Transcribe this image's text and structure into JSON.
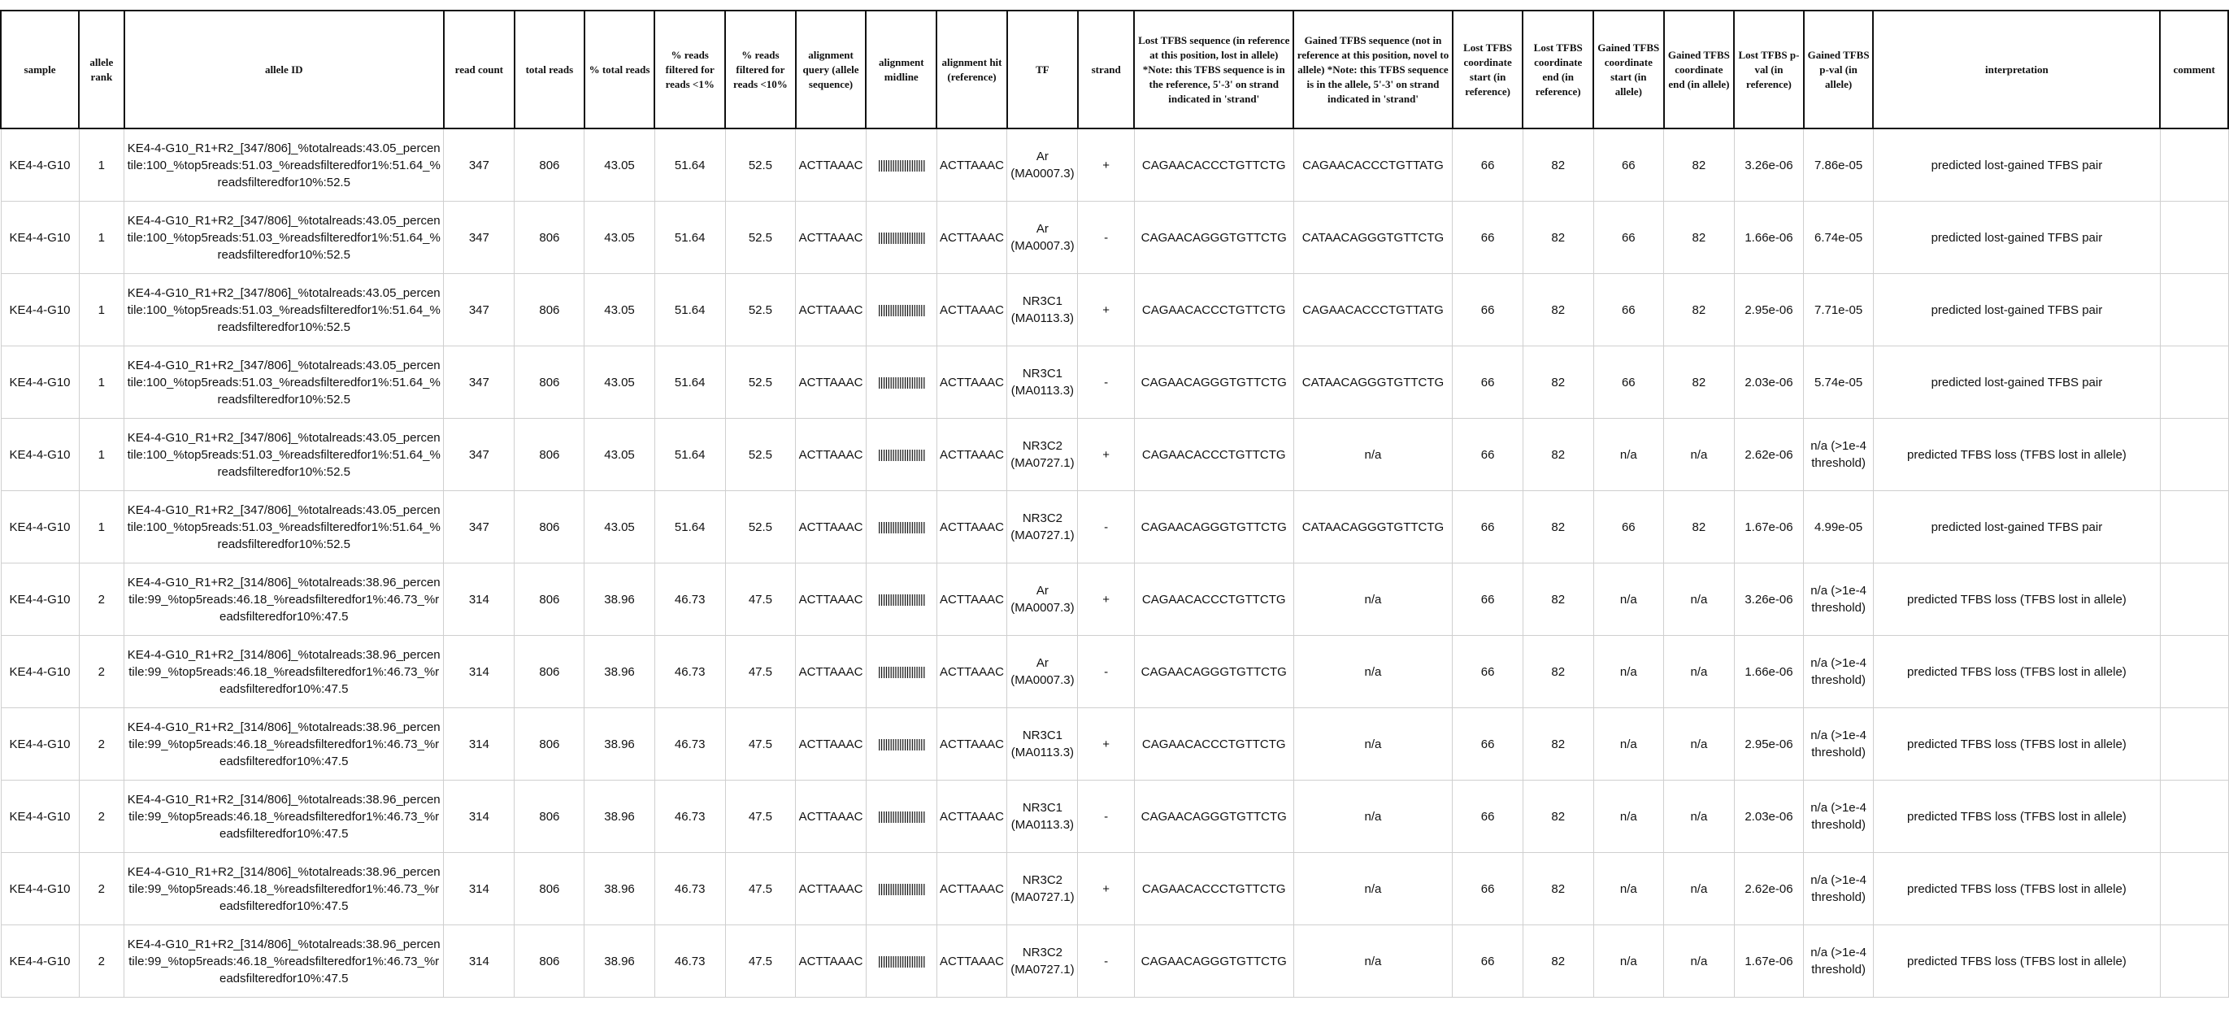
{
  "columns": [
    "sample",
    "allele rank",
    "allele ID",
    "read count",
    "total reads",
    "% total reads",
    "% reads filtered for reads <1%",
    "% reads filtered for reads <10%",
    "alignment query (allele sequence)",
    "alignment midline",
    "alignment hit (reference)",
    "TF",
    "strand",
    "Lost TFBS sequence (in reference at this position, lost in allele) *Note: this TFBS sequence is in the reference, 5'-3' on strand indicated in 'strand'",
    "Gained TFBS sequence (not in reference at this position, novel to allele) *Note: this TFBS sequence is in the allele, 5'-3' on strand indicated in 'strand'",
    "Lost TFBS coordinate start (in reference)",
    "Lost TFBS coordinate end (in reference)",
    "Gained TFBS coordinate start (in allele)",
    "Gained TFBS coordinate end (in allele)",
    "Lost TFBS p-val (in reference)",
    "Gained TFBS p-val (in allele)",
    "interpretation",
    "comment"
  ],
  "rows": [
    [
      "KE4-4-G10",
      "1",
      "KE4-4-G10_R1+R2_[347/806]_%totalreads:43.05_percentile:100_%top5reads:51.03_%readsfilteredfor1%:51.64_%readsfilteredfor10%:52.5",
      "347",
      "806",
      "43.05",
      "51.64",
      "52.5",
      "ACTTAAAC",
      "||||||||||||||||||||",
      "ACTTAAAC",
      "Ar (MA0007.3)",
      "+",
      "CAGAACACCCTGTTCTG",
      "CAGAACACCCTGTTATG",
      "66",
      "82",
      "66",
      "82",
      "3.26e-06",
      "7.86e-05",
      "predicted lost-gained TFBS pair",
      ""
    ],
    [
      "KE4-4-G10",
      "1",
      "KE4-4-G10_R1+R2_[347/806]_%totalreads:43.05_percentile:100_%top5reads:51.03_%readsfilteredfor1%:51.64_%readsfilteredfor10%:52.5",
      "347",
      "806",
      "43.05",
      "51.64",
      "52.5",
      "ACTTAAAC",
      "||||||||||||||||||||",
      "ACTTAAAC",
      "Ar (MA0007.3)",
      "-",
      "CAGAACAGGGTGTTCTG",
      "CATAACAGGGTGTTCTG",
      "66",
      "82",
      "66",
      "82",
      "1.66e-06",
      "6.74e-05",
      "predicted lost-gained TFBS pair",
      ""
    ],
    [
      "KE4-4-G10",
      "1",
      "KE4-4-G10_R1+R2_[347/806]_%totalreads:43.05_percentile:100_%top5reads:51.03_%readsfilteredfor1%:51.64_%readsfilteredfor10%:52.5",
      "347",
      "806",
      "43.05",
      "51.64",
      "52.5",
      "ACTTAAAC",
      "||||||||||||||||||||",
      "ACTTAAAC",
      "NR3C1 (MA0113.3)",
      "+",
      "CAGAACACCCTGTTCTG",
      "CAGAACACCCTGTTATG",
      "66",
      "82",
      "66",
      "82",
      "2.95e-06",
      "7.71e-05",
      "predicted lost-gained TFBS pair",
      ""
    ],
    [
      "KE4-4-G10",
      "1",
      "KE4-4-G10_R1+R2_[347/806]_%totalreads:43.05_percentile:100_%top5reads:51.03_%readsfilteredfor1%:51.64_%readsfilteredfor10%:52.5",
      "347",
      "806",
      "43.05",
      "51.64",
      "52.5",
      "ACTTAAAC",
      "||||||||||||||||||||",
      "ACTTAAAC",
      "NR3C1 (MA0113.3)",
      "-",
      "CAGAACAGGGTGTTCTG",
      "CATAACAGGGTGTTCTG",
      "66",
      "82",
      "66",
      "82",
      "2.03e-06",
      "5.74e-05",
      "predicted lost-gained TFBS pair",
      ""
    ],
    [
      "KE4-4-G10",
      "1",
      "KE4-4-G10_R1+R2_[347/806]_%totalreads:43.05_percentile:100_%top5reads:51.03_%readsfilteredfor1%:51.64_%readsfilteredfor10%:52.5",
      "347",
      "806",
      "43.05",
      "51.64",
      "52.5",
      "ACTTAAAC",
      "||||||||||||||||||||",
      "ACTTAAAC",
      "NR3C2 (MA0727.1)",
      "+",
      "CAGAACACCCTGTTCTG",
      "n/a",
      "66",
      "82",
      "n/a",
      "n/a",
      "2.62e-06",
      "n/a (>1e-4 threshold)",
      "predicted TFBS loss (TFBS lost in allele)",
      ""
    ],
    [
      "KE4-4-G10",
      "1",
      "KE4-4-G10_R1+R2_[347/806]_%totalreads:43.05_percentile:100_%top5reads:51.03_%readsfilteredfor1%:51.64_%readsfilteredfor10%:52.5",
      "347",
      "806",
      "43.05",
      "51.64",
      "52.5",
      "ACTTAAAC",
      "||||||||||||||||||||",
      "ACTTAAAC",
      "NR3C2 (MA0727.1)",
      "-",
      "CAGAACAGGGTGTTCTG",
      "CATAACAGGGTGTTCTG",
      "66",
      "82",
      "66",
      "82",
      "1.67e-06",
      "4.99e-05",
      "predicted lost-gained TFBS pair",
      ""
    ],
    [
      "KE4-4-G10",
      "2",
      "KE4-4-G10_R1+R2_[314/806]_%totalreads:38.96_percentile:99_%top5reads:46.18_%readsfilteredfor1%:46.73_%readsfilteredfor10%:47.5",
      "314",
      "806",
      "38.96",
      "46.73",
      "47.5",
      "ACTTAAAC",
      "||||||||||||||||||||",
      "ACTTAAAC",
      "Ar (MA0007.3)",
      "+",
      "CAGAACACCCTGTTCTG",
      "n/a",
      "66",
      "82",
      "n/a",
      "n/a",
      "3.26e-06",
      "n/a (>1e-4 threshold)",
      "predicted TFBS loss (TFBS lost in allele)",
      ""
    ],
    [
      "KE4-4-G10",
      "2",
      "KE4-4-G10_R1+R2_[314/806]_%totalreads:38.96_percentile:99_%top5reads:46.18_%readsfilteredfor1%:46.73_%readsfilteredfor10%:47.5",
      "314",
      "806",
      "38.96",
      "46.73",
      "47.5",
      "ACTTAAAC",
      "||||||||||||||||||||",
      "ACTTAAAC",
      "Ar (MA0007.3)",
      "-",
      "CAGAACAGGGTGTTCTG",
      "n/a",
      "66",
      "82",
      "n/a",
      "n/a",
      "1.66e-06",
      "n/a (>1e-4 threshold)",
      "predicted TFBS loss (TFBS lost in allele)",
      ""
    ],
    [
      "KE4-4-G10",
      "2",
      "KE4-4-G10_R1+R2_[314/806]_%totalreads:38.96_percentile:99_%top5reads:46.18_%readsfilteredfor1%:46.73_%readsfilteredfor10%:47.5",
      "314",
      "806",
      "38.96",
      "46.73",
      "47.5",
      "ACTTAAAC",
      "||||||||||||||||||||",
      "ACTTAAAC",
      "NR3C1 (MA0113.3)",
      "+",
      "CAGAACACCCTGTTCTG",
      "n/a",
      "66",
      "82",
      "n/a",
      "n/a",
      "2.95e-06",
      "n/a (>1e-4 threshold)",
      "predicted TFBS loss (TFBS lost in allele)",
      ""
    ],
    [
      "KE4-4-G10",
      "2",
      "KE4-4-G10_R1+R2_[314/806]_%totalreads:38.96_percentile:99_%top5reads:46.18_%readsfilteredfor1%:46.73_%readsfilteredfor10%:47.5",
      "314",
      "806",
      "38.96",
      "46.73",
      "47.5",
      "ACTTAAAC",
      "||||||||||||||||||||",
      "ACTTAAAC",
      "NR3C1 (MA0113.3)",
      "-",
      "CAGAACAGGGTGTTCTG",
      "n/a",
      "66",
      "82",
      "n/a",
      "n/a",
      "2.03e-06",
      "n/a (>1e-4 threshold)",
      "predicted TFBS loss (TFBS lost in allele)",
      ""
    ],
    [
      "KE4-4-G10",
      "2",
      "KE4-4-G10_R1+R2_[314/806]_%totalreads:38.96_percentile:99_%top5reads:46.18_%readsfilteredfor1%:46.73_%readsfilteredfor10%:47.5",
      "314",
      "806",
      "38.96",
      "46.73",
      "47.5",
      "ACTTAAAC",
      "||||||||||||||||||||",
      "ACTTAAAC",
      "NR3C2 (MA0727.1)",
      "+",
      "CAGAACACCCTGTTCTG",
      "n/a",
      "66",
      "82",
      "n/a",
      "n/a",
      "2.62e-06",
      "n/a (>1e-4 threshold)",
      "predicted TFBS loss (TFBS lost in allele)",
      ""
    ],
    [
      "KE4-4-G10",
      "2",
      "KE4-4-G10_R1+R2_[314/806]_%totalreads:38.96_percentile:99_%top5reads:46.18_%readsfilteredfor1%:46.73_%readsfilteredfor10%:47.5",
      "314",
      "806",
      "38.96",
      "46.73",
      "47.5",
      "ACTTAAAC",
      "||||||||||||||||||||",
      "ACTTAAAC",
      "NR3C2 (MA0727.1)",
      "-",
      "CAGAACAGGGTGTTCTG",
      "n/a",
      "66",
      "82",
      "n/a",
      "n/a",
      "1.67e-06",
      "n/a (>1e-4 threshold)",
      "predicted TFBS loss (TFBS lost in allele)",
      ""
    ]
  ]
}
